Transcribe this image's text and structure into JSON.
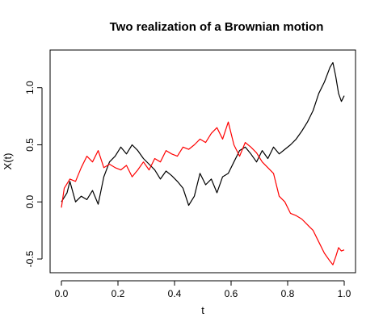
{
  "chart_data": {
    "type": "line",
    "title": "Two realization of a Brownian motion",
    "xlabel": "t",
    "ylabel": "X(t)",
    "xlim": [
      -0.04,
      1.04
    ],
    "ylim": [
      -0.62,
      1.33
    ],
    "x_ticks": [
      0.0,
      0.2,
      0.4,
      0.6,
      0.8,
      1.0
    ],
    "x_tick_labels": [
      "0.0",
      "0.2",
      "0.4",
      "0.6",
      "0.8",
      "1.0"
    ],
    "y_ticks": [
      -0.5,
      0.0,
      0.5,
      1.0
    ],
    "y_tick_labels": [
      "-0.5",
      "0.0",
      "0.5",
      "1.0"
    ],
    "grid": false,
    "legend": "none",
    "series": [
      {
        "color": "#000000",
        "x": [
          0.0,
          0.02,
          0.03,
          0.05,
          0.07,
          0.09,
          0.11,
          0.13,
          0.15,
          0.17,
          0.19,
          0.21,
          0.23,
          0.25,
          0.27,
          0.29,
          0.31,
          0.33,
          0.35,
          0.37,
          0.39,
          0.41,
          0.43,
          0.45,
          0.47,
          0.49,
          0.51,
          0.53,
          0.55,
          0.57,
          0.59,
          0.61,
          0.63,
          0.65,
          0.67,
          0.69,
          0.71,
          0.73,
          0.75,
          0.77,
          0.79,
          0.81,
          0.83,
          0.85,
          0.87,
          0.89,
          0.91,
          0.93,
          0.95,
          0.96,
          0.97,
          0.98,
          0.99,
          1.0
        ],
        "values": [
          0.0,
          0.08,
          0.18,
          0.0,
          0.05,
          0.02,
          0.1,
          -0.02,
          0.22,
          0.35,
          0.4,
          0.48,
          0.42,
          0.5,
          0.45,
          0.38,
          0.33,
          0.28,
          0.2,
          0.27,
          0.23,
          0.18,
          0.12,
          -0.03,
          0.05,
          0.25,
          0.15,
          0.2,
          0.08,
          0.22,
          0.25,
          0.35,
          0.45,
          0.48,
          0.42,
          0.35,
          0.45,
          0.38,
          0.48,
          0.42,
          0.46,
          0.5,
          0.55,
          0.62,
          0.7,
          0.8,
          0.95,
          1.05,
          1.18,
          1.22,
          1.1,
          0.95,
          0.88,
          0.93
        ]
      },
      {
        "color": "#ff0000",
        "x": [
          0.0,
          0.01,
          0.03,
          0.05,
          0.07,
          0.09,
          0.11,
          0.13,
          0.15,
          0.17,
          0.19,
          0.21,
          0.23,
          0.25,
          0.27,
          0.29,
          0.31,
          0.33,
          0.35,
          0.37,
          0.39,
          0.41,
          0.43,
          0.45,
          0.47,
          0.49,
          0.51,
          0.53,
          0.55,
          0.57,
          0.59,
          0.61,
          0.63,
          0.65,
          0.67,
          0.69,
          0.71,
          0.73,
          0.75,
          0.77,
          0.79,
          0.81,
          0.83,
          0.85,
          0.87,
          0.89,
          0.91,
          0.93,
          0.95,
          0.96,
          0.97,
          0.98,
          0.99,
          1.0
        ],
        "values": [
          -0.05,
          0.12,
          0.2,
          0.18,
          0.3,
          0.4,
          0.35,
          0.45,
          0.3,
          0.33,
          0.3,
          0.28,
          0.32,
          0.22,
          0.28,
          0.35,
          0.28,
          0.38,
          0.35,
          0.45,
          0.42,
          0.4,
          0.48,
          0.46,
          0.5,
          0.55,
          0.52,
          0.6,
          0.65,
          0.55,
          0.7,
          0.5,
          0.4,
          0.52,
          0.48,
          0.43,
          0.35,
          0.3,
          0.25,
          0.05,
          0.0,
          -0.1,
          -0.12,
          -0.15,
          -0.2,
          -0.25,
          -0.35,
          -0.45,
          -0.52,
          -0.55,
          -0.48,
          -0.4,
          -0.43,
          -0.42
        ]
      }
    ]
  }
}
